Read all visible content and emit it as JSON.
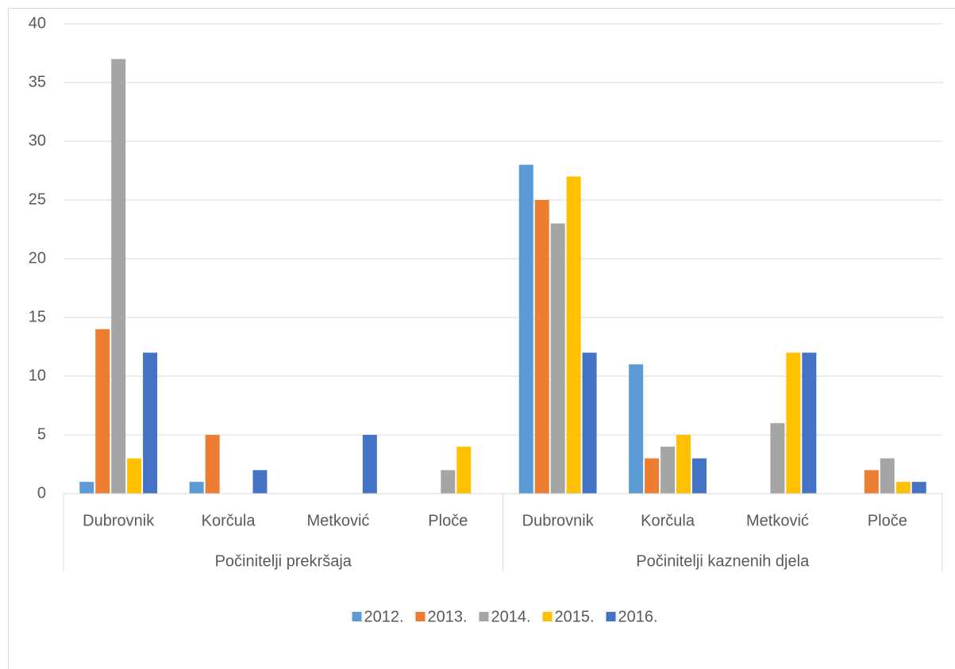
{
  "chart_data": {
    "type": "bar",
    "categories": [
      "Dubrovnik",
      "Korčula",
      "Metković",
      "Ploče",
      "Dubrovnik",
      "Korčula",
      "Metković",
      "Ploče"
    ],
    "groups": [
      "Počinitelji prekršaja",
      "Počinitelji kaznenih djela"
    ],
    "series": [
      {
        "name": "2012.",
        "color": "#5b9bd5",
        "values": [
          1,
          1,
          0,
          0,
          28,
          11,
          0,
          0
        ]
      },
      {
        "name": "2013.",
        "color": "#ed7d31",
        "values": [
          14,
          5,
          0,
          0,
          25,
          3,
          0,
          2
        ]
      },
      {
        "name": "2014.",
        "color": "#a5a5a5",
        "values": [
          37,
          0,
          0,
          2,
          23,
          4,
          6,
          3
        ]
      },
      {
        "name": "2015.",
        "color": "#ffc000",
        "values": [
          3,
          0,
          0,
          4,
          27,
          5,
          12,
          1
        ]
      },
      {
        "name": "2016.",
        "color": "#4472c4",
        "values": [
          12,
          2,
          5,
          0,
          12,
          3,
          12,
          1
        ]
      }
    ],
    "ylim": [
      0,
      40
    ],
    "yticks": [
      0,
      5,
      10,
      15,
      20,
      25,
      30,
      35,
      40
    ],
    "grid": true,
    "legend": "bottom"
  }
}
